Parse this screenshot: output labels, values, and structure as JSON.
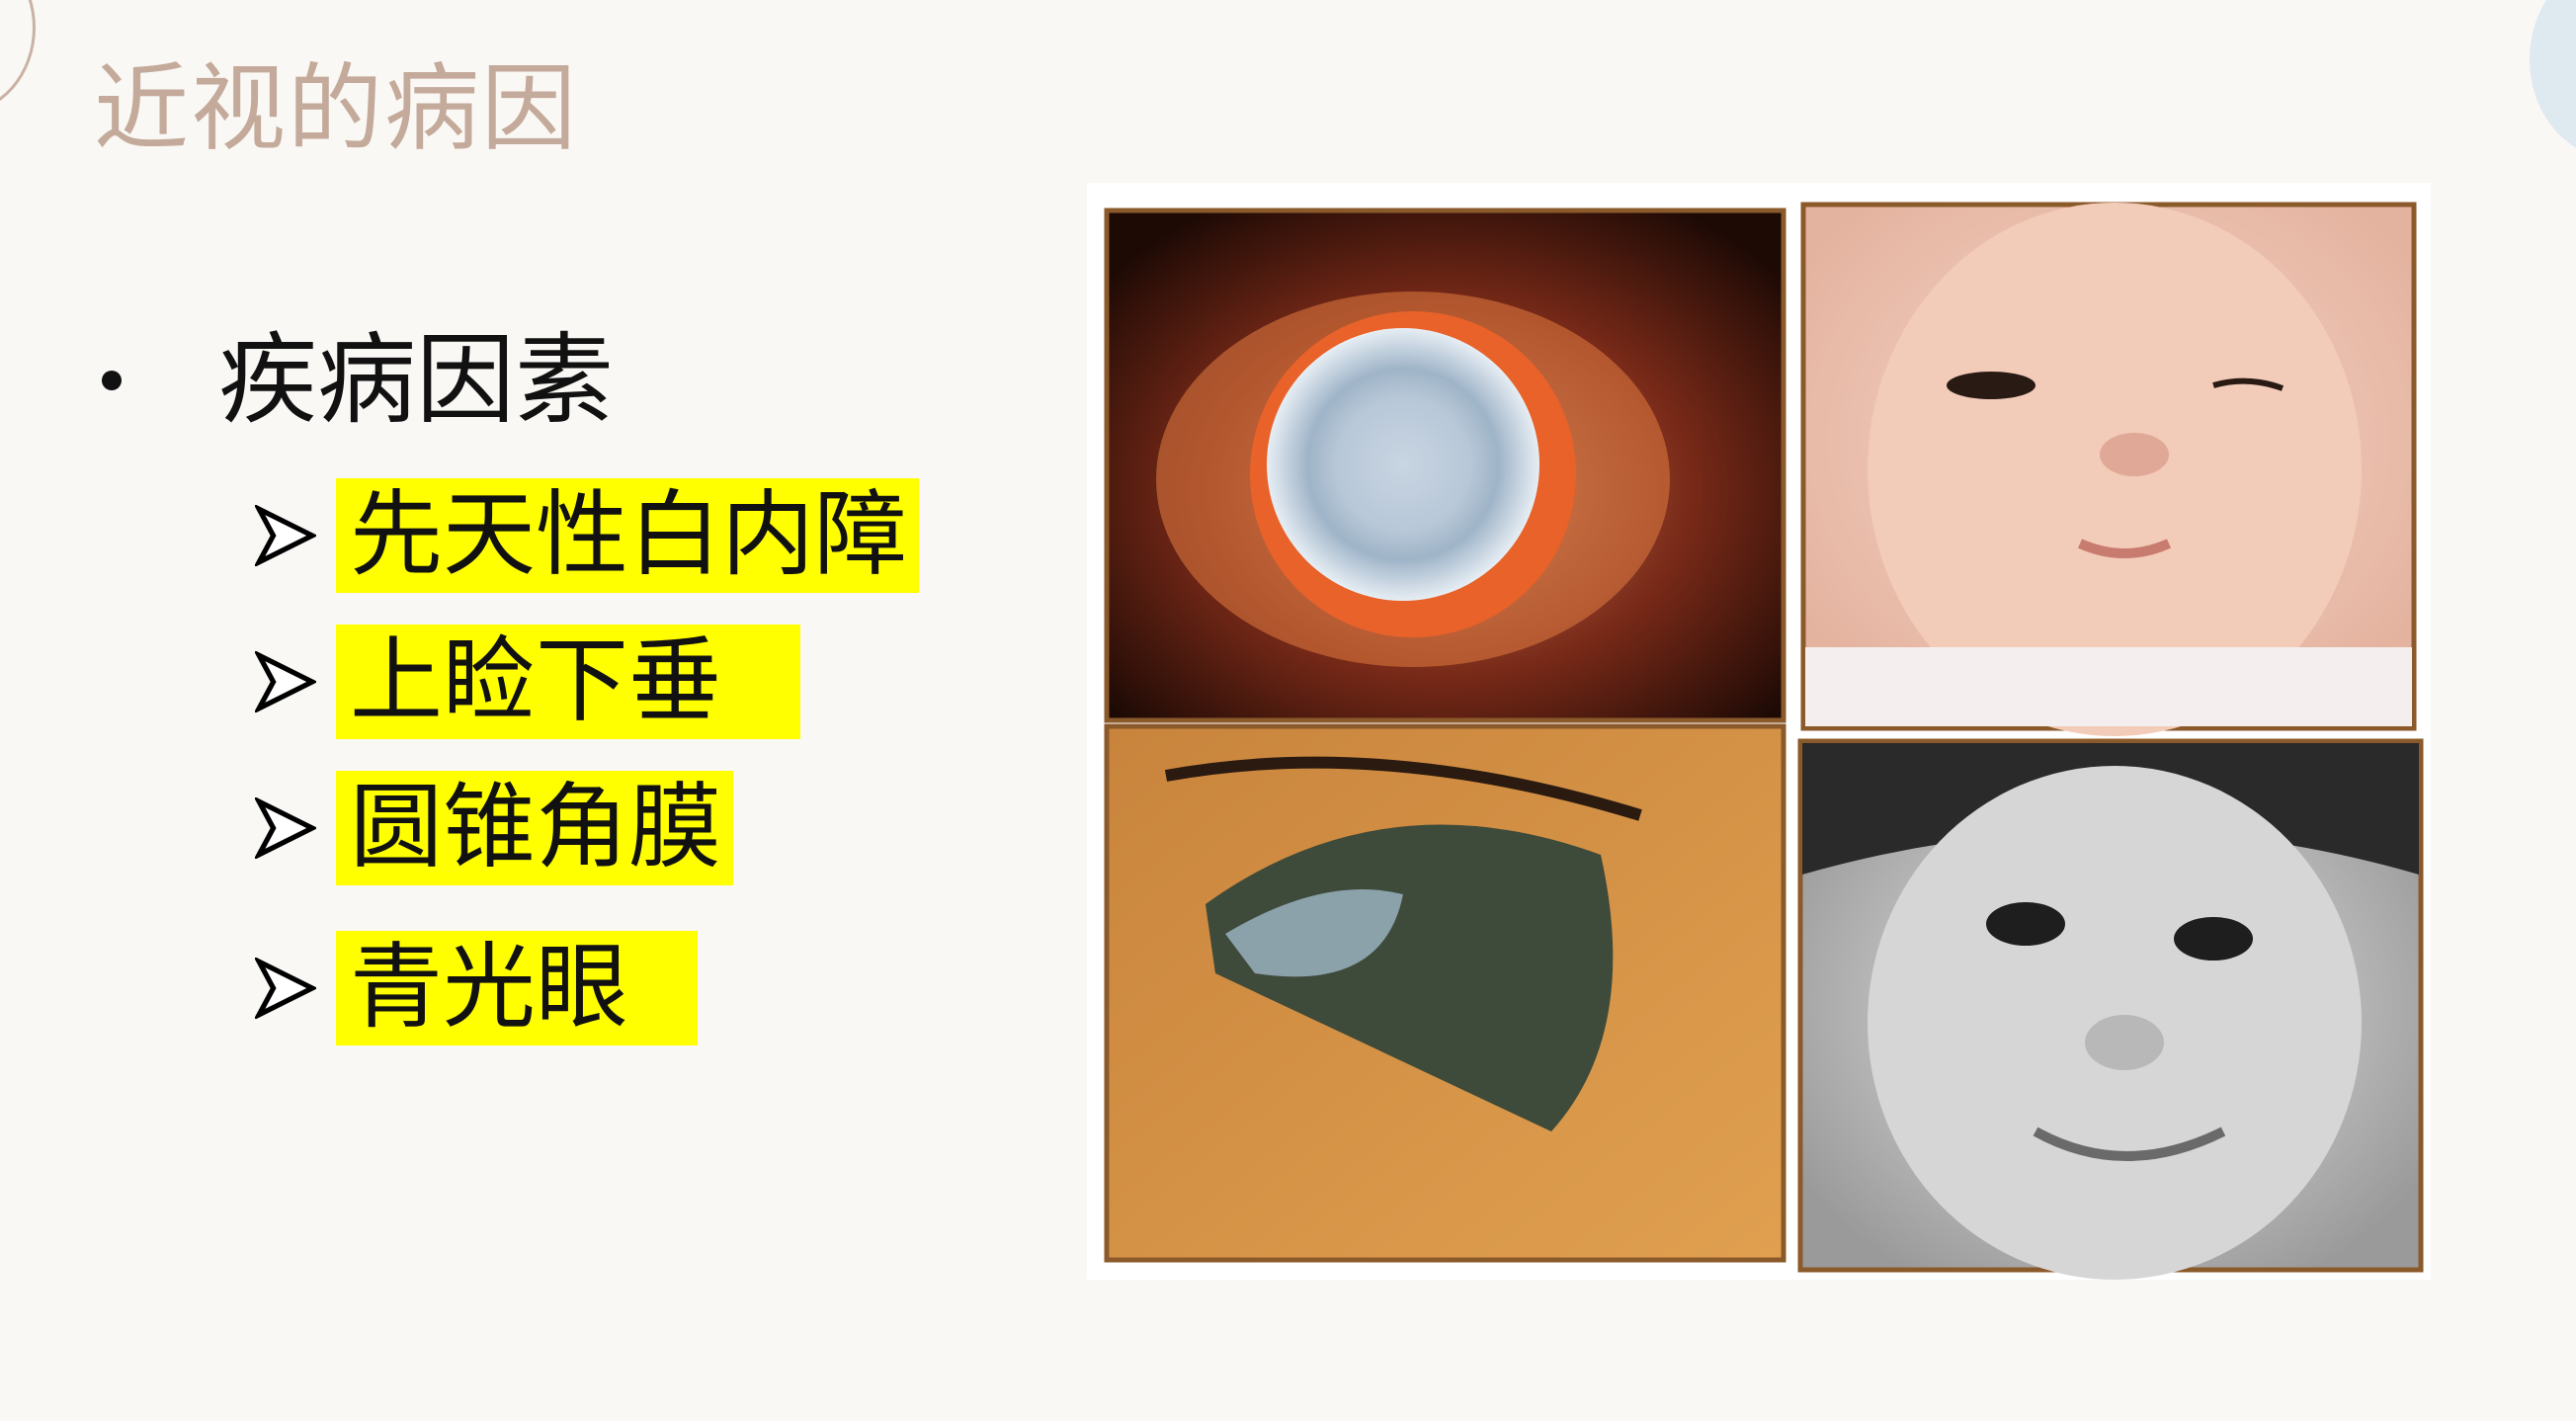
{
  "slide": {
    "title": "近视的病因",
    "bullet": "疾病因素",
    "sub_items": [
      "先天性白内障",
      "上睑下垂",
      "圆锥角膜",
      "青光眼"
    ]
  },
  "colors": {
    "background": "#faf8f5",
    "title": "#c4aa9a",
    "highlight": "#ffff00",
    "frame": "#8b5a2b"
  },
  "photos": [
    {
      "subject": "cataract-eye"
    },
    {
      "subject": "infant-ptosis"
    },
    {
      "subject": "keratoconus-eye"
    },
    {
      "subject": "child-face"
    }
  ]
}
